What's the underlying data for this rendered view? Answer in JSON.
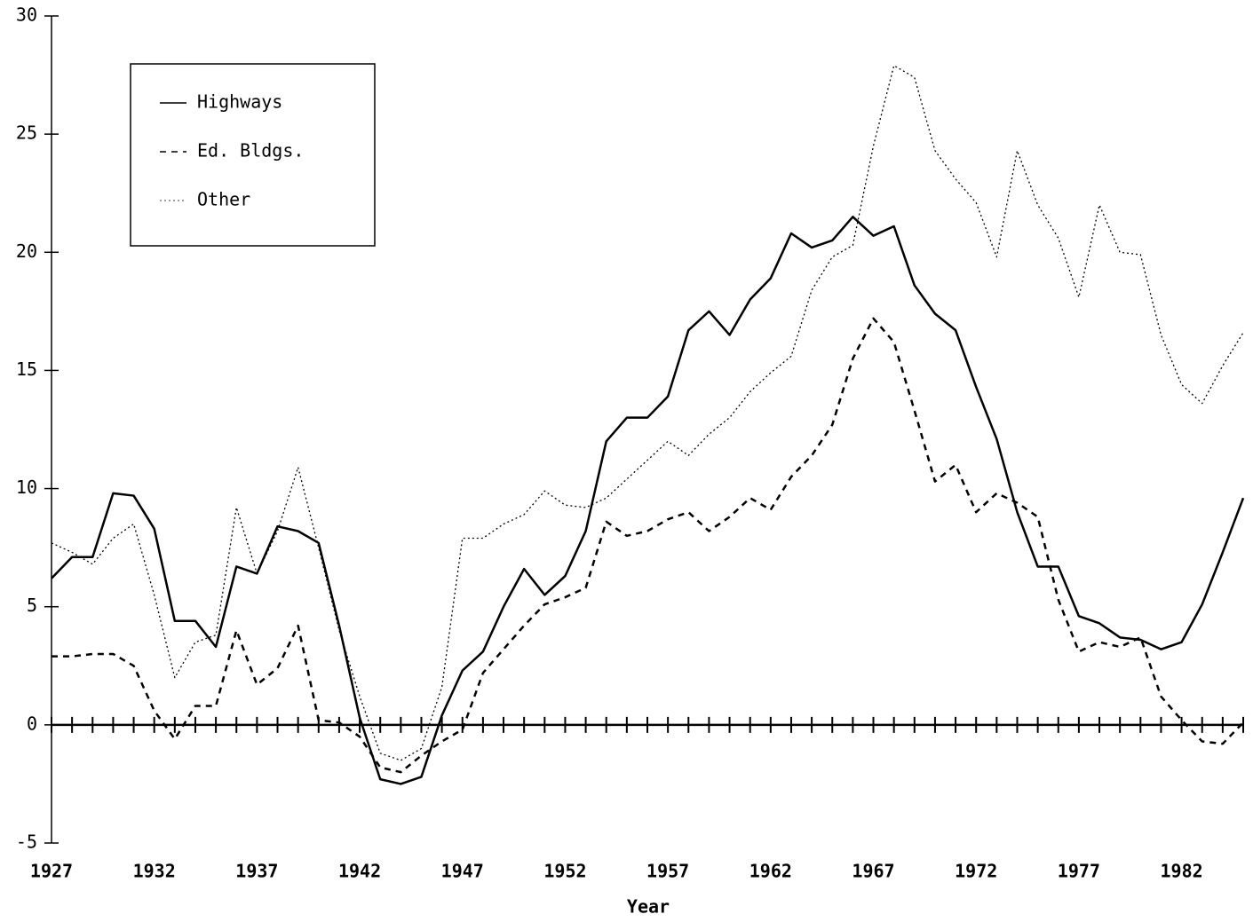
{
  "chart_data": {
    "type": "line",
    "x_label": "Year",
    "x": [
      1927,
      1928,
      1929,
      1930,
      1931,
      1932,
      1933,
      1934,
      1935,
      1936,
      1937,
      1938,
      1939,
      1940,
      1941,
      1942,
      1943,
      1944,
      1945,
      1946,
      1947,
      1948,
      1949,
      1950,
      1951,
      1952,
      1953,
      1954,
      1955,
      1956,
      1957,
      1958,
      1959,
      1960,
      1961,
      1962,
      1963,
      1964,
      1965,
      1966,
      1967,
      1968,
      1969,
      1970,
      1971,
      1972,
      1973,
      1974,
      1975,
      1976,
      1977,
      1978,
      1979,
      1980,
      1981,
      1982,
      1983,
      1984,
      1985
    ],
    "series": [
      {
        "name": "Highways",
        "color": "#000000",
        "line_style": "solid",
        "values": [
          6.2,
          7.1,
          7.1,
          9.8,
          9.7,
          8.3,
          4.4,
          4.4,
          3.3,
          6.7,
          6.4,
          8.4,
          8.2,
          7.7,
          4.2,
          0.3,
          -2.3,
          -2.5,
          -2.2,
          0.4,
          2.3,
          3.1,
          5.0,
          6.6,
          5.5,
          6.3,
          8.2,
          12.0,
          13.0,
          13.0,
          13.9,
          16.7,
          17.5,
          16.5,
          18.0,
          18.9,
          20.8,
          20.2,
          20.5,
          21.5,
          20.7,
          21.1,
          18.6,
          17.4,
          16.7,
          14.3,
          12.1,
          9.0,
          6.7,
          6.7,
          4.6,
          4.3,
          3.7,
          3.6,
          3.2,
          3.5,
          5.1,
          7.3,
          9.6
        ]
      },
      {
        "name": "Ed. Bldgs.",
        "color": "#000000",
        "line_style": "dashed",
        "values": [
          2.9,
          2.9,
          3.0,
          3.0,
          2.5,
          0.6,
          -0.6,
          0.8,
          0.8,
          4.0,
          1.7,
          2.4,
          4.2,
          0.2,
          0.1,
          -0.5,
          -1.8,
          -2.0,
          -1.3,
          -0.7,
          -0.2,
          2.2,
          3.2,
          4.2,
          5.1,
          5.4,
          5.8,
          8.6,
          8.0,
          8.2,
          8.7,
          9.0,
          8.2,
          8.8,
          9.6,
          9.1,
          10.5,
          11.4,
          12.7,
          15.5,
          17.2,
          16.2,
          13.3,
          10.3,
          11.0,
          9.0,
          9.8,
          9.4,
          8.8,
          5.3,
          3.1,
          3.5,
          3.3,
          3.7,
          1.2,
          0.2,
          -0.7,
          -0.8,
          0.1
        ]
      },
      {
        "name": "Other",
        "color": "#000000",
        "line_style": "dotted",
        "values": [
          7.7,
          7.3,
          6.8,
          7.9,
          8.5,
          5.5,
          2.0,
          3.5,
          3.8,
          9.2,
          6.4,
          8.2,
          10.9,
          7.5,
          4.0,
          1.2,
          -1.2,
          -1.5,
          -1.0,
          1.6,
          7.9,
          7.9,
          8.5,
          8.9,
          9.9,
          9.3,
          9.2,
          9.6,
          10.4,
          11.2,
          12.0,
          11.4,
          12.3,
          13.0,
          14.1,
          14.9,
          15.6,
          18.4,
          19.8,
          20.3,
          24.5,
          27.9,
          27.4,
          24.3,
          23.1,
          22.1,
          19.8,
          24.3,
          22.0,
          20.6,
          18.1,
          22.0,
          20.0,
          19.9,
          16.5,
          14.4,
          13.6,
          15.2,
          16.6
        ]
      }
    ],
    "xlim": [
      1927,
      1985
    ],
    "xticks": [
      1927,
      1932,
      1937,
      1942,
      1947,
      1952,
      1957,
      1962,
      1967,
      1972,
      1977,
      1982
    ],
    "ylim": [
      -5,
      30
    ],
    "yticks": [
      -5,
      0,
      5,
      10,
      15,
      20,
      25,
      30
    ],
    "legend": "upper left"
  }
}
